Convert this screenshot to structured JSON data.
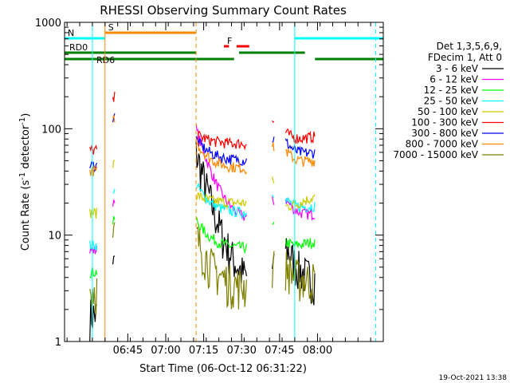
{
  "chart_data": {
    "type": "line",
    "title": "RHESSI Observing Summary Count Rates",
    "xlabel": "Start Time (06-Oct-12 06:31:22)",
    "ylabel_main": "Count Rate (s",
    "ylabel_sup1": "-1",
    "ylabel_mid": " detector",
    "ylabel_sup2": "-1",
    "ylabel_end": ")",
    "y_scale": "log",
    "ylim": [
      1,
      1000
    ],
    "x_range_min": [
      -11,
      115
    ],
    "x_tick_labels": [
      "06:45",
      "07:00",
      "07:15",
      "07:30",
      "07:45",
      "08:00"
    ],
    "x_tick_minutes": [
      14,
      29,
      44,
      59,
      74,
      89
    ],
    "y_tick_labels": [
      "1",
      "10",
      "100",
      "1000"
    ],
    "y_tick_values": [
      1,
      10,
      100,
      1000
    ],
    "legend_title_1": "Det 1,3,5,6,9,",
    "legend_title_2": "FDecim 1, Att 0",
    "legend_placement": "right",
    "timestamp": "19-Oct-2021 13:38",
    "data_gaps_min": [
      [
        2,
        8
      ],
      [
        9,
        41
      ],
      [
        61,
        71
      ],
      [
        72,
        76
      ]
    ],
    "series": [
      {
        "name": "3 - 6 keV",
        "color": "#000000",
        "base": 3
      },
      {
        "name": "6 - 12 keV",
        "color": "#ff00ff",
        "base": 13
      },
      {
        "name": "12 - 25 keV",
        "color": "#00ff00",
        "base": 7.5
      },
      {
        "name": "25 - 50 keV",
        "color": "#00ffff",
        "base": 16
      },
      {
        "name": "50 - 100 keV",
        "color": "#cccc00",
        "base": 20
      },
      {
        "name": "100 - 300 keV",
        "color": "#ff0000",
        "base": 72
      },
      {
        "name": "300 - 800 keV",
        "color": "#0000ff",
        "base": 50
      },
      {
        "name": "800 - 7000 keV",
        "color": "#ff8800",
        "base": 42
      },
      {
        "name": "7000 - 15000 keV",
        "color": "#808000",
        "base": 3.2
      }
    ],
    "flags": [
      {
        "label": "S",
        "color": "#ff8800",
        "start": 5,
        "end": 41
      },
      {
        "label": "N",
        "color": "#00ffff",
        "start": -11,
        "end": 5
      },
      {
        "label": "",
        "color": "#00ffff",
        "start": 80,
        "end": 115
      },
      {
        "label": "F",
        "color": "#ff0000",
        "start": 52,
        "end": 54
      },
      {
        "label": "",
        "color": "#ff0000",
        "start": 57,
        "end": 62
      },
      {
        "label": "RD0",
        "color": "#008000",
        "start": -11,
        "end": 41
      },
      {
        "label": "",
        "color": "#008000",
        "start": 58,
        "end": 84
      },
      {
        "label": "RD6",
        "color": "#008000",
        "start": -11,
        "end": 41
      },
      {
        "label": "",
        "color": "#008000",
        "start": 41,
        "end": 56
      },
      {
        "label": "",
        "color": "#008000",
        "start": 88,
        "end": 115
      }
    ],
    "vertical_lines": [
      {
        "minute": 0,
        "color": "#00ffff",
        "style": "solid"
      },
      {
        "minute": 5,
        "color": "#ff8800",
        "style": "solid"
      },
      {
        "minute": 41,
        "color": "#ff8800",
        "style": "dashed"
      },
      {
        "minute": 80,
        "color": "#00ffff",
        "style": "solid"
      },
      {
        "minute": 112,
        "color": "#00ffff",
        "style": "dashed"
      }
    ]
  }
}
